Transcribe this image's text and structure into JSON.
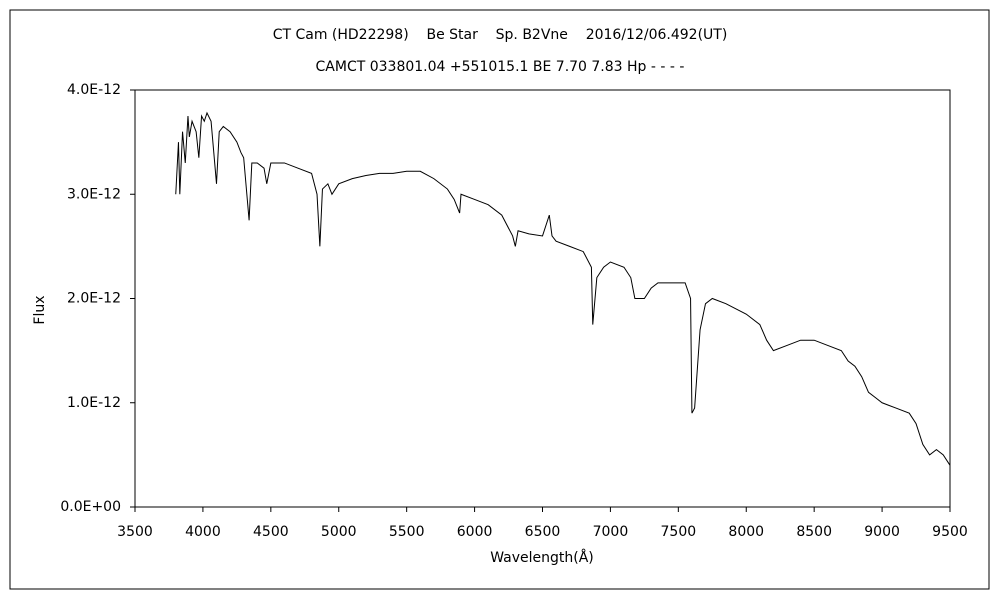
{
  "chart_data": {
    "type": "line",
    "title": "CT Cam (HD22298)    Be Star    Sp. B2Vne    2016/12/06.492(UT)",
    "subtitle": "CAMCT 033801.04 +551015.1 BE 7.70 7.83 Hp - - - -",
    "xlabel": "Wavelength(Å)",
    "ylabel": "Flux",
    "xlim": [
      3500,
      9500
    ],
    "xticks": [
      3500,
      4000,
      4500,
      5000,
      5500,
      6000,
      6500,
      7000,
      7500,
      8000,
      8500,
      9000,
      9500
    ],
    "ylim": [
      0,
      4e-12
    ],
    "yticks": [
      {
        "value": 0,
        "label": "0.0E+00"
      },
      {
        "value": 1e-12,
        "label": "1.0E-12"
      },
      {
        "value": 2e-12,
        "label": "2.0E-12"
      },
      {
        "value": 3e-12,
        "label": "3.0E-12"
      },
      {
        "value": 4e-12,
        "label": "4.0E-12"
      }
    ],
    "grid": false,
    "series": [
      {
        "color": "#000000",
        "x": [
          3800,
          3820,
          3830,
          3850,
          3870,
          3890,
          3900,
          3920,
          3950,
          3970,
          3990,
          4010,
          4030,
          4060,
          4100,
          4120,
          4150,
          4200,
          4250,
          4280,
          4300,
          4340,
          4360,
          4400,
          4450,
          4470,
          4500,
          4600,
          4700,
          4800,
          4840,
          4861,
          4880,
          4920,
          4950,
          5000,
          5100,
          5200,
          5300,
          5400,
          5500,
          5600,
          5700,
          5800,
          5850,
          5890,
          5900,
          6000,
          6100,
          6200,
          6280,
          6300,
          6320,
          6400,
          6500,
          6550,
          6570,
          6600,
          6700,
          6800,
          6860,
          6870,
          6900,
          6950,
          7000,
          7100,
          7150,
          7180,
          7250,
          7300,
          7350,
          7450,
          7550,
          7590,
          7600,
          7620,
          7660,
          7700,
          7750,
          7850,
          8000,
          8100,
          8150,
          8200,
          8300,
          8400,
          8500,
          8600,
          8700,
          8750,
          8800,
          8850,
          8900,
          8950,
          9000,
          9100,
          9200,
          9250,
          9300,
          9350,
          9400,
          9450,
          9500
        ],
        "values": [
          3e-12,
          3.5e-12,
          3e-12,
          3.6e-12,
          3.3e-12,
          3.75e-12,
          3.55e-12,
          3.7e-12,
          3.6e-12,
          3.35e-12,
          3.75e-12,
          3.7e-12,
          3.78e-12,
          3.7e-12,
          3.1e-12,
          3.6e-12,
          3.65e-12,
          3.6e-12,
          3.5e-12,
          3.4e-12,
          3.35e-12,
          2.75e-12,
          3.3e-12,
          3.3e-12,
          3.25e-12,
          3.1e-12,
          3.3e-12,
          3.3e-12,
          3.25e-12,
          3.2e-12,
          3e-12,
          2.5e-12,
          3.05e-12,
          3.1e-12,
          3e-12,
          3.1e-12,
          3.15e-12,
          3.18e-12,
          3.2e-12,
          3.2e-12,
          3.22e-12,
          3.22e-12,
          3.15e-12,
          3.05e-12,
          2.95e-12,
          2.82e-12,
          3e-12,
          2.95e-12,
          2.9e-12,
          2.8e-12,
          2.6e-12,
          2.5e-12,
          2.65e-12,
          2.62e-12,
          2.6e-12,
          2.8e-12,
          2.6e-12,
          2.55e-12,
          2.5e-12,
          2.45e-12,
          2.3e-12,
          1.75e-12,
          2.2e-12,
          2.3e-12,
          2.35e-12,
          2.3e-12,
          2.2e-12,
          2e-12,
          2e-12,
          2.1e-12,
          2.15e-12,
          2.15e-12,
          2.15e-12,
          2e-12,
          9e-13,
          9.5e-13,
          1.7e-12,
          1.95e-12,
          2e-12,
          1.95e-12,
          1.85e-12,
          1.75e-12,
          1.6e-12,
          1.5e-12,
          1.55e-12,
          1.6e-12,
          1.6e-12,
          1.55e-12,
          1.5e-12,
          1.4e-12,
          1.35e-12,
          1.25e-12,
          1.1e-12,
          1.05e-12,
          1e-12,
          9.5e-13,
          9e-13,
          8e-13,
          6e-13,
          5e-13,
          5.5e-13,
          5e-13,
          4e-13
        ]
      }
    ]
  }
}
